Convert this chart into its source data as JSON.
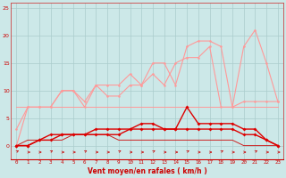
{
  "x": [
    0,
    1,
    2,
    3,
    4,
    5,
    6,
    7,
    8,
    9,
    10,
    11,
    12,
    13,
    14,
    15,
    16,
    17,
    18,
    19,
    20,
    21,
    22,
    23
  ],
  "gust1": [
    3,
    7,
    7,
    7,
    10,
    10,
    7,
    11,
    11,
    11,
    13,
    11,
    15,
    15,
    11,
    18,
    19,
    19,
    18,
    7,
    18,
    21,
    15,
    8
  ],
  "gust2": [
    0,
    7,
    7,
    7,
    10,
    10,
    8,
    11,
    9,
    9,
    11,
    11,
    13,
    11,
    15,
    16,
    16,
    18,
    7,
    7,
    8,
    8,
    8,
    8
  ],
  "mean1": [
    0,
    0,
    1,
    2,
    2,
    2,
    2,
    3,
    3,
    3,
    3,
    4,
    4,
    3,
    3,
    7,
    4,
    4,
    4,
    4,
    3,
    3,
    1,
    0
  ],
  "mean2": [
    0,
    0,
    1,
    1,
    2,
    2,
    2,
    2,
    2,
    2,
    3,
    3,
    3,
    3,
    3,
    3,
    3,
    3,
    3,
    3,
    2,
    2,
    1,
    0
  ],
  "flat1": [
    0,
    1,
    1,
    1,
    1,
    2,
    2,
    2,
    2,
    1,
    1,
    1,
    1,
    1,
    1,
    1,
    1,
    1,
    1,
    1,
    0,
    0,
    0,
    0
  ],
  "flatline": [
    7,
    7,
    7,
    7,
    7,
    7,
    7,
    7,
    7,
    7,
    7,
    7,
    7,
    7,
    7,
    7,
    7,
    7,
    7,
    7,
    7,
    7,
    7,
    7
  ],
  "xlabel": "Vent moyen/en rafales ( km/h )",
  "yticks": [
    0,
    5,
    10,
    15,
    20,
    25
  ],
  "xticks": [
    0,
    1,
    2,
    3,
    4,
    5,
    6,
    7,
    8,
    9,
    10,
    11,
    12,
    13,
    14,
    15,
    16,
    17,
    18,
    19,
    20,
    21,
    22,
    23
  ],
  "bg_color": "#cce8e8",
  "grid_color": "#aacccc",
  "light_pink": "#ff9999",
  "mid_pink": "#ff7777",
  "dark_red": "#dd0000",
  "med_red": "#cc2222",
  "arrow_color": "#cc0000"
}
